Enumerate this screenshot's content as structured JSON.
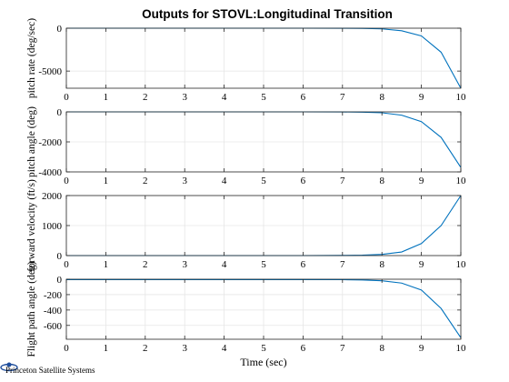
{
  "title": "Outputs for STOVL:Longitudinal Transition",
  "logo_text": "Princeton Satellite Systems",
  "colors": {
    "line": "#0072BD",
    "grid": "#e6e6e6",
    "axis": "#262626",
    "background": "#ffffff"
  },
  "chart_data": [
    {
      "type": "line",
      "ylabel": "pitch rate (deg/sec)",
      "xlabel": "",
      "xlim": [
        0,
        10
      ],
      "ylim": [
        -7000,
        0
      ],
      "xticks": [
        0,
        1,
        2,
        3,
        4,
        5,
        6,
        7,
        8,
        9,
        10
      ],
      "yticks": [
        -5000,
        0
      ],
      "grid": true,
      "x": [
        0,
        1,
        2,
        3,
        4,
        5,
        6,
        7,
        7.5,
        8,
        8.5,
        9,
        9.5,
        10
      ],
      "y": [
        0,
        0,
        0,
        0,
        0,
        0,
        0,
        -5,
        -20,
        -80,
        -300,
        -900,
        -2800,
        -7000
      ]
    },
    {
      "type": "line",
      "ylabel": "pitch angle (deg)",
      "xlabel": "",
      "xlim": [
        0,
        10
      ],
      "ylim": [
        -4000,
        0
      ],
      "xticks": [
        0,
        1,
        2,
        3,
        4,
        5,
        6,
        7,
        8,
        9,
        10
      ],
      "yticks": [
        -4000,
        -2000,
        0
      ],
      "grid": true,
      "x": [
        0,
        1,
        2,
        3,
        4,
        5,
        6,
        7,
        7.5,
        8,
        8.5,
        9,
        9.5,
        10
      ],
      "y": [
        0,
        0,
        0,
        0,
        0,
        0,
        0,
        -5,
        -20,
        -60,
        -220,
        -650,
        -1700,
        -3700
      ]
    },
    {
      "type": "line",
      "ylabel": "forward velocity (ft/s)",
      "xlabel": "",
      "xlim": [
        0,
        10
      ],
      "ylim": [
        0,
        2000
      ],
      "xticks": [
        0,
        1,
        2,
        3,
        4,
        5,
        6,
        7,
        8,
        9,
        10
      ],
      "yticks": [
        0,
        1000,
        2000
      ],
      "grid": true,
      "x": [
        0,
        1,
        2,
        3,
        4,
        5,
        6,
        7,
        7.5,
        8,
        8.5,
        9,
        9.5,
        10
      ],
      "y": [
        0,
        0,
        0,
        0,
        0,
        0,
        0,
        5,
        15,
        40,
        120,
        400,
        1000,
        2000
      ]
    },
    {
      "type": "line",
      "ylabel": "Flight path angle (deg)",
      "xlabel": "Time (sec)",
      "xlim": [
        0,
        10
      ],
      "ylim": [
        -780,
        0
      ],
      "xticks": [
        0,
        1,
        2,
        3,
        4,
        5,
        6,
        7,
        8,
        9,
        10
      ],
      "yticks": [
        -600,
        -400,
        -200,
        0
      ],
      "grid": true,
      "x": [
        0,
        1,
        2,
        3,
        4,
        5,
        6,
        7,
        7.5,
        8,
        8.5,
        9,
        9.5,
        10
      ],
      "y": [
        -5,
        -5,
        -5,
        -5,
        -5,
        -5,
        -5,
        -6,
        -10,
        -20,
        -50,
        -140,
        -380,
        -760
      ]
    }
  ]
}
